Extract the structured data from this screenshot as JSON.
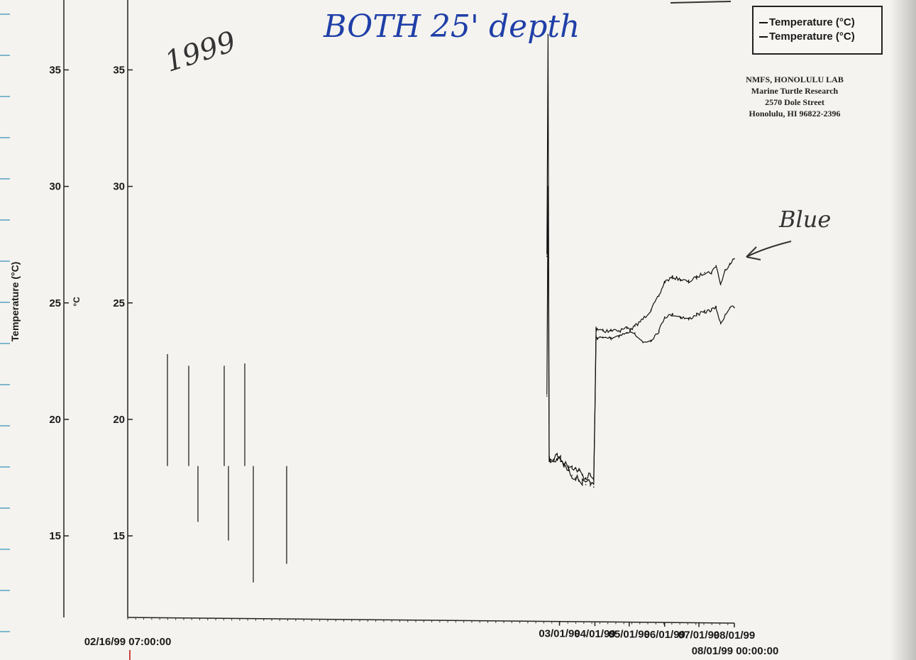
{
  "annotations": {
    "year": "1999",
    "note": "BOTH 25' depth",
    "blue_label": "Blue"
  },
  "lab_info": {
    "line1": "NMFS, HONOLULU LAB",
    "line2": "Marine Turtle Research",
    "line3": "2570 Dole Street",
    "line4": "Honolulu, HI 96822-2396"
  },
  "chart_data": {
    "type": "line",
    "title": "",
    "xlabel": "",
    "ylabel": "Temperature (°C)",
    "inner_axis_unit": "°C",
    "ylim": [
      11.5,
      38
    ],
    "xlim": [
      "02/16/99 07:00:00",
      "08/01/99 00:00:00"
    ],
    "x_start_label": "02/16/99 07:00:00",
    "x_end_label": "08/01/99 00:00:00",
    "y_ticks": [
      "35",
      "30",
      "25",
      "20",
      "15"
    ],
    "y_tick_values": [
      35,
      30,
      25,
      20,
      15
    ],
    "x_ticks": [
      "03/01/99",
      "04/01/99",
      "05/01/99",
      "06/01/99",
      "07/01/99",
      "08/01/99"
    ],
    "x_tick_values": [
      "1999-03-01",
      "1999-04-01",
      "1999-05-01",
      "1999-06-01",
      "1999-07-01",
      "1999-08-01"
    ],
    "legend_position": "top-right",
    "grid": false,
    "series": [
      {
        "name": "Temperature (°C)",
        "color": "#111111",
        "x": [
          "1999-02-18",
          "1999-02-19",
          "1999-02-20",
          "1999-02-21",
          "1999-02-24",
          "1999-02-27",
          "1999-03-02",
          "1999-03-05",
          "1999-03-09",
          "1999-03-12",
          "1999-03-15",
          "1999-03-18",
          "1999-03-21",
          "1999-03-24",
          "1999-03-28",
          "1999-03-31",
          "1999-04-02",
          "1999-04-03",
          "1999-04-08",
          "1999-04-15",
          "1999-04-22",
          "1999-04-29",
          "1999-05-06",
          "1999-05-13",
          "1999-05-20",
          "1999-05-27",
          "1999-06-01",
          "1999-06-08",
          "1999-06-15",
          "1999-06-22",
          "1999-06-29",
          "1999-07-06",
          "1999-07-12",
          "1999-07-16",
          "1999-07-20",
          "1999-07-24",
          "1999-07-28",
          "1999-08-01"
        ],
        "y": [
          27.0,
          36.5,
          18.4,
          18.3,
          18.3,
          18.5,
          18.3,
          18.1,
          18.0,
          18.0,
          17.9,
          17.8,
          17.6,
          17.5,
          17.6,
          17.4,
          23.5,
          23.5,
          23.5,
          23.5,
          23.6,
          23.7,
          24.0,
          24.3,
          24.7,
          25.3,
          25.9,
          26.1,
          26.0,
          25.9,
          26.1,
          26.3,
          26.3,
          26.6,
          25.8,
          26.4,
          26.7,
          26.9
        ]
      },
      {
        "name": "Temperature (°C)",
        "color": "#111111",
        "x": [
          "1999-02-18",
          "1999-02-19",
          "1999-02-20",
          "1999-02-21",
          "1999-02-24",
          "1999-02-27",
          "1999-03-02",
          "1999-03-05",
          "1999-03-09",
          "1999-03-12",
          "1999-03-15",
          "1999-03-18",
          "1999-03-21",
          "1999-03-24",
          "1999-03-28",
          "1999-03-31",
          "1999-04-02",
          "1999-04-03",
          "1999-04-08",
          "1999-04-15",
          "1999-04-22",
          "1999-04-29",
          "1999-05-06",
          "1999-05-13",
          "1999-05-20",
          "1999-05-27",
          "1999-06-01",
          "1999-06-08",
          "1999-06-15",
          "1999-06-22",
          "1999-06-29",
          "1999-07-06",
          "1999-07-12",
          "1999-07-16",
          "1999-07-20",
          "1999-07-24",
          "1999-07-28",
          "1999-08-01"
        ],
        "y": [
          21.0,
          30.0,
          18.2,
          18.2,
          18.2,
          18.3,
          18.2,
          18.0,
          17.8,
          17.6,
          17.5,
          17.4,
          17.3,
          17.2,
          17.3,
          17.1,
          23.9,
          23.9,
          23.8,
          23.8,
          23.8,
          23.9,
          23.7,
          23.3,
          23.4,
          23.8,
          24.4,
          24.5,
          24.4,
          24.3,
          24.5,
          24.6,
          24.7,
          24.8,
          24.1,
          24.5,
          24.8,
          24.8
        ]
      }
    ]
  }
}
